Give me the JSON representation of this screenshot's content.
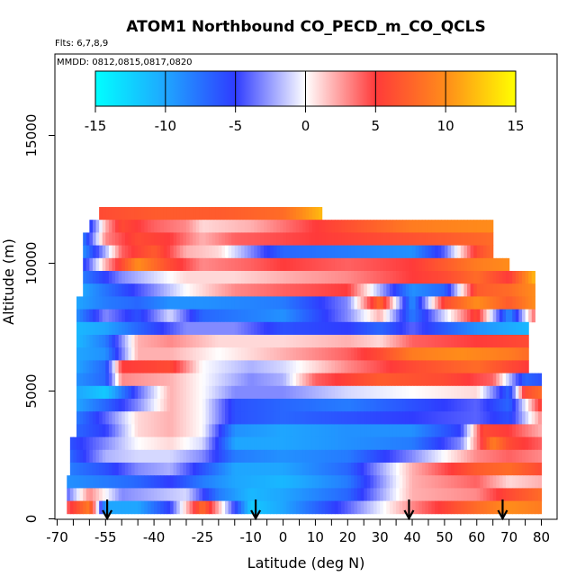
{
  "chart_data": {
    "type": "heatmap",
    "title": "ATOM1 Northbound CO_PECD_m_CO_QCLS",
    "subtitle": "Flts: 6,7,8,9",
    "date_note": "MMDD: 0812,0815,0817,0820",
    "xlabel": "Latitude (deg N)",
    "ylabel": "Altitude (m)",
    "xlim": [
      -70,
      80
    ],
    "ylim": [
      0,
      17500
    ],
    "x_ticks": [
      -70,
      -55,
      -40,
      -25,
      -10,
      0,
      10,
      20,
      30,
      40,
      50,
      60,
      70,
      80
    ],
    "x_tick_labels": [
      "-70",
      "-55",
      "-40",
      "-25",
      "-10",
      "0",
      "10",
      "20",
      "30",
      "40",
      "50",
      "60",
      "70",
      "80"
    ],
    "y_ticks": [
      0,
      5000,
      10000,
      15000
    ],
    "y_tick_labels": [
      "0",
      "5000",
      "10000",
      "15000"
    ],
    "colorbar": {
      "range": [
        -15,
        15
      ],
      "ticks": [
        -15,
        -10,
        -5,
        0,
        5,
        10,
        15
      ],
      "tick_labels": [
        "-15",
        "-10",
        "-5",
        "0",
        "5",
        "10",
        "15"
      ],
      "colors": [
        "#00ffff",
        "#1fa6ff",
        "#2f3cff",
        "#ffffff",
        "#ff3a3a",
        "#ff8c1a",
        "#ffff00"
      ]
    },
    "profile_latitudes": [
      -54.5,
      -8.5,
      39,
      68
    ],
    "bands": [
      {
        "alt": 11950,
        "xmin": -57,
        "xmax": 12,
        "knots": [
          [
            -57,
            6
          ],
          [
            -40,
            7
          ],
          [
            -20,
            7
          ],
          [
            0,
            8
          ],
          [
            12,
            12
          ]
        ]
      },
      {
        "alt": 11450,
        "xmin": -60,
        "xmax": 65,
        "knots": [
          [
            -60,
            -6
          ],
          [
            -55,
            2
          ],
          [
            -50,
            6
          ],
          [
            -40,
            4
          ],
          [
            -30,
            3
          ],
          [
            -25,
            1
          ],
          [
            -10,
            2
          ],
          [
            10,
            5
          ],
          [
            40,
            9
          ],
          [
            65,
            10
          ]
        ]
      },
      {
        "alt": 10950,
        "xmin": -62,
        "xmax": 65,
        "knots": [
          [
            -62,
            -8
          ],
          [
            -55,
            3
          ],
          [
            -45,
            6
          ],
          [
            -35,
            5
          ],
          [
            -25,
            2
          ],
          [
            -15,
            4
          ],
          [
            10,
            5
          ],
          [
            30,
            6
          ],
          [
            50,
            7
          ],
          [
            65,
            8
          ]
        ]
      },
      {
        "alt": 10450,
        "xmin": -62,
        "xmax": 65,
        "knots": [
          [
            -62,
            -9
          ],
          [
            -55,
            -2
          ],
          [
            -50,
            4
          ],
          [
            -40,
            7
          ],
          [
            -30,
            2
          ],
          [
            -20,
            1
          ],
          [
            0,
            -7
          ],
          [
            20,
            -8
          ],
          [
            40,
            -9
          ],
          [
            50,
            -4
          ],
          [
            60,
            6
          ],
          [
            65,
            8
          ]
        ]
      },
      {
        "alt": 9950,
        "xmin": -62,
        "xmax": 70,
        "knots": [
          [
            -62,
            -6
          ],
          [
            -55,
            2
          ],
          [
            -45,
            10
          ],
          [
            -35,
            6
          ],
          [
            -25,
            3
          ],
          [
            -10,
            4
          ],
          [
            0,
            5
          ],
          [
            20,
            4
          ],
          [
            40,
            5
          ],
          [
            50,
            7
          ],
          [
            60,
            9
          ],
          [
            70,
            10
          ]
        ]
      },
      {
        "alt": 9450,
        "xmin": -62,
        "xmax": 78,
        "knots": [
          [
            -62,
            -8
          ],
          [
            -50,
            -3
          ],
          [
            -40,
            -1
          ],
          [
            -30,
            1
          ],
          [
            -15,
            1
          ],
          [
            0,
            2
          ],
          [
            20,
            3
          ],
          [
            40,
            5
          ],
          [
            50,
            6
          ],
          [
            60,
            8
          ],
          [
            70,
            5
          ],
          [
            78,
            12
          ]
        ]
      },
      {
        "alt": 8950,
        "xmin": -62,
        "xmax": 78,
        "knots": [
          [
            -62,
            -10
          ],
          [
            -50,
            -6
          ],
          [
            -40,
            -3
          ],
          [
            -30,
            0
          ],
          [
            -15,
            3
          ],
          [
            0,
            4
          ],
          [
            20,
            5
          ],
          [
            40,
            -9
          ],
          [
            50,
            -7
          ],
          [
            60,
            7
          ],
          [
            70,
            8
          ],
          [
            78,
            10
          ]
        ]
      },
      {
        "alt": 8450,
        "xmin": -64,
        "xmax": 78,
        "knots": [
          [
            -64,
            -10
          ],
          [
            -55,
            -8
          ],
          [
            -45,
            -7
          ],
          [
            -35,
            -9
          ],
          [
            -25,
            -9
          ],
          [
            0,
            -8
          ],
          [
            20,
            -3
          ],
          [
            30,
            8
          ],
          [
            40,
            -9
          ],
          [
            50,
            6
          ],
          [
            60,
            10
          ],
          [
            70,
            7
          ],
          [
            78,
            10
          ]
        ]
      },
      {
        "alt": 7950,
        "xmin": -64,
        "xmax": 78,
        "knots": [
          [
            -64,
            -9
          ],
          [
            -55,
            -3
          ],
          [
            -45,
            -6
          ],
          [
            -35,
            -1
          ],
          [
            -25,
            -7
          ],
          [
            0,
            -9
          ],
          [
            20,
            -3
          ],
          [
            30,
            2
          ],
          [
            40,
            -8
          ],
          [
            60,
            6
          ],
          [
            70,
            -9
          ],
          [
            78,
            4
          ]
        ]
      },
      {
        "alt": 7450,
        "xmin": -64,
        "xmax": 76,
        "knots": [
          [
            -64,
            -11
          ],
          [
            -55,
            -10
          ],
          [
            -45,
            -7
          ],
          [
            -30,
            -3
          ],
          [
            -15,
            -3
          ],
          [
            0,
            -6
          ],
          [
            20,
            -5
          ],
          [
            30,
            -7
          ],
          [
            40,
            -4
          ],
          [
            60,
            -9
          ],
          [
            76,
            -11
          ]
        ]
      },
      {
        "alt": 6950,
        "xmin": -64,
        "xmax": 76,
        "knots": [
          [
            -64,
            -11
          ],
          [
            -55,
            -8
          ],
          [
            -45,
            2
          ],
          [
            -35,
            3
          ],
          [
            -20,
            1
          ],
          [
            0,
            1
          ],
          [
            20,
            2
          ],
          [
            30,
            1
          ],
          [
            40,
            4
          ],
          [
            60,
            5
          ],
          [
            76,
            6
          ]
        ]
      },
      {
        "alt": 6450,
        "xmin": -64,
        "xmax": 76,
        "knots": [
          [
            -64,
            -10
          ],
          [
            -55,
            -9
          ],
          [
            -45,
            2
          ],
          [
            -35,
            2
          ],
          [
            -20,
            0
          ],
          [
            0,
            2
          ],
          [
            20,
            4
          ],
          [
            30,
            6
          ],
          [
            40,
            9
          ],
          [
            55,
            10
          ],
          [
            70,
            9
          ],
          [
            76,
            8
          ]
        ]
      },
      {
        "alt": 5950,
        "xmin": -64,
        "xmax": 76,
        "knots": [
          [
            -64,
            -10
          ],
          [
            -55,
            -7
          ],
          [
            -50,
            5
          ],
          [
            -35,
            6
          ],
          [
            -25,
            0
          ],
          [
            -10,
            -2
          ],
          [
            0,
            -1
          ],
          [
            20,
            3
          ],
          [
            40,
            6
          ],
          [
            60,
            8
          ],
          [
            70,
            6
          ],
          [
            76,
            5
          ]
        ]
      },
      {
        "alt": 5450,
        "xmin": -64,
        "xmax": 80,
        "knots": [
          [
            -64,
            -9
          ],
          [
            -55,
            -7
          ],
          [
            -50,
            3
          ],
          [
            -35,
            2
          ],
          [
            -25,
            0
          ],
          [
            -10,
            -3
          ],
          [
            0,
            -2
          ],
          [
            10,
            4
          ],
          [
            30,
            7
          ],
          [
            50,
            6
          ],
          [
            65,
            4
          ],
          [
            75,
            -7
          ],
          [
            80,
            -6
          ]
        ]
      },
      {
        "alt": 4950,
        "xmin": -64,
        "xmax": 80,
        "knots": [
          [
            -64,
            -10
          ],
          [
            -55,
            -12
          ],
          [
            -45,
            -4
          ],
          [
            -35,
            2
          ],
          [
            -25,
            0
          ],
          [
            -15,
            -3
          ],
          [
            0,
            -3
          ],
          [
            20,
            -1
          ],
          [
            40,
            0
          ],
          [
            60,
            1
          ],
          [
            70,
            -7
          ],
          [
            75,
            6
          ],
          [
            80,
            8
          ]
        ]
      },
      {
        "alt": 4450,
        "xmin": -64,
        "xmax": 80,
        "knots": [
          [
            -64,
            -10
          ],
          [
            -55,
            -7
          ],
          [
            -45,
            -3
          ],
          [
            -35,
            2
          ],
          [
            -25,
            0
          ],
          [
            -15,
            -6
          ],
          [
            0,
            -7
          ],
          [
            20,
            -8
          ],
          [
            40,
            -6
          ],
          [
            60,
            -4
          ],
          [
            70,
            -7
          ],
          [
            80,
            6
          ]
        ]
      },
      {
        "alt": 3950,
        "xmin": -64,
        "xmax": 80,
        "knots": [
          [
            -64,
            -8
          ],
          [
            -55,
            -4
          ],
          [
            -45,
            1
          ],
          [
            -35,
            2
          ],
          [
            -25,
            0
          ],
          [
            -15,
            -6
          ],
          [
            0,
            -7
          ],
          [
            20,
            -6
          ],
          [
            40,
            -5
          ],
          [
            60,
            -4
          ],
          [
            70,
            -6
          ],
          [
            80,
            3
          ]
        ]
      },
      {
        "alt": 3450,
        "xmin": -64,
        "xmax": 80,
        "knots": [
          [
            -64,
            -7
          ],
          [
            -55,
            -5
          ],
          [
            -45,
            1
          ],
          [
            -35,
            2
          ],
          [
            -25,
            0
          ],
          [
            -15,
            -9
          ],
          [
            0,
            -10
          ],
          [
            20,
            -9
          ],
          [
            40,
            -9
          ],
          [
            55,
            -5
          ],
          [
            62,
            6
          ],
          [
            70,
            5
          ],
          [
            80,
            2
          ]
        ]
      },
      {
        "alt": 2950,
        "xmin": -66,
        "xmax": 80,
        "knots": [
          [
            -66,
            -6
          ],
          [
            -55,
            -3
          ],
          [
            -45,
            0
          ],
          [
            -35,
            1
          ],
          [
            -25,
            -1
          ],
          [
            -15,
            -10
          ],
          [
            0,
            -10
          ],
          [
            20,
            -9
          ],
          [
            40,
            -8
          ],
          [
            55,
            -3
          ],
          [
            65,
            9
          ],
          [
            70,
            6
          ],
          [
            80,
            4
          ]
        ]
      },
      {
        "alt": 2450,
        "xmin": -66,
        "xmax": 80,
        "knots": [
          [
            -66,
            -7
          ],
          [
            -55,
            -2
          ],
          [
            -45,
            -1
          ],
          [
            -35,
            -1
          ],
          [
            -25,
            -3
          ],
          [
            -15,
            -8
          ],
          [
            0,
            -9
          ],
          [
            20,
            -8
          ],
          [
            40,
            -3
          ],
          [
            60,
            3
          ],
          [
            70,
            4
          ],
          [
            80,
            3
          ]
        ]
      },
      {
        "alt": 1950,
        "xmin": -66,
        "xmax": 80,
        "knots": [
          [
            -66,
            -8
          ],
          [
            -55,
            -6
          ],
          [
            -45,
            -3
          ],
          [
            -35,
            -2
          ],
          [
            -25,
            -6
          ],
          [
            -15,
            -10
          ],
          [
            0,
            -10
          ],
          [
            20,
            -7
          ],
          [
            40,
            2
          ],
          [
            60,
            7
          ],
          [
            70,
            8
          ],
          [
            80,
            6
          ]
        ]
      },
      {
        "alt": 1450,
        "xmin": -67,
        "xmax": 80,
        "knots": [
          [
            -67,
            -9
          ],
          [
            -55,
            -8
          ],
          [
            -45,
            -7
          ],
          [
            -35,
            -5
          ],
          [
            -25,
            -8
          ],
          [
            -15,
            -10
          ],
          [
            0,
            -11
          ],
          [
            20,
            -8
          ],
          [
            40,
            2
          ],
          [
            60,
            4
          ],
          [
            70,
            1
          ],
          [
            80,
            2
          ]
        ]
      },
      {
        "alt": 950,
        "xmin": -67,
        "xmax": 80,
        "knots": [
          [
            -67,
            -4
          ],
          [
            -60,
            3
          ],
          [
            -50,
            -3
          ],
          [
            -40,
            -2
          ],
          [
            -30,
            -1
          ],
          [
            -20,
            -8
          ],
          [
            -10,
            -11
          ],
          [
            0,
            -10
          ],
          [
            20,
            -7
          ],
          [
            40,
            2
          ],
          [
            60,
            3
          ],
          [
            70,
            6
          ],
          [
            80,
            8
          ]
        ]
      },
      {
        "alt": 450,
        "xmin": -67,
        "xmax": 80,
        "knots": [
          [
            -67,
            4
          ],
          [
            -60,
            9
          ],
          [
            -55,
            -10
          ],
          [
            -45,
            -10
          ],
          [
            -35,
            -5
          ],
          [
            -25,
            8
          ],
          [
            -20,
            2
          ],
          [
            -10,
            -12
          ],
          [
            0,
            -10
          ],
          [
            20,
            -4
          ],
          [
            40,
            3
          ],
          [
            60,
            8
          ],
          [
            70,
            10
          ],
          [
            80,
            9
          ]
        ]
      }
    ]
  }
}
